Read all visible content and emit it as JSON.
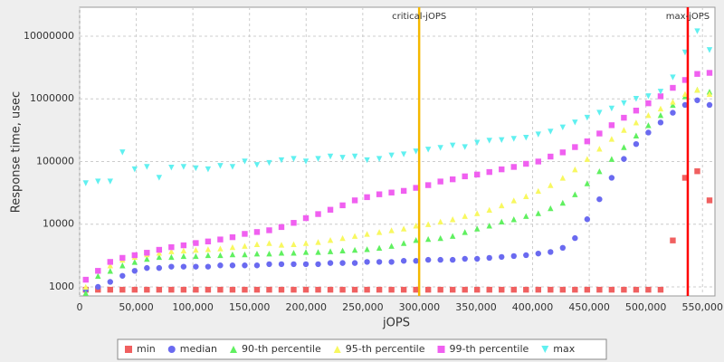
{
  "chart_data": {
    "type": "scatter",
    "x_label": "jOPS",
    "y_label": "Response time, usec",
    "log_y": true,
    "grid": true,
    "xlim": [
      0,
      561000
    ],
    "ylim": [
      716,
      29000000
    ],
    "xticks": [
      0,
      {
        "value": 50000,
        "label": "50,000"
      },
      {
        "value": 100000,
        "label": "100,000"
      },
      {
        "value": 150000,
        "label": "150,000"
      },
      {
        "value": 200000,
        "label": "200,000"
      },
      {
        "value": 250000,
        "label": "250,000"
      },
      {
        "value": 300000,
        "label": "300,000"
      },
      {
        "value": 350000,
        "label": "350,000"
      },
      {
        "value": 400000,
        "label": "400,000"
      },
      {
        "value": 450000,
        "label": "450,000"
      },
      {
        "value": 500000,
        "label": "500,000"
      },
      {
        "value": 550000,
        "label": "550,000"
      }
    ],
    "yticks": [
      1000,
      10000,
      100000,
      1000000,
      10000000
    ],
    "annotations": [
      {
        "text": "critical-jOPS",
        "x": 299800,
        "color": "#f5b800"
      },
      {
        "text": "max-jOPS",
        "x": 537000,
        "color": "#ff0000"
      }
    ],
    "x": [
      5400,
      16200,
      27000,
      37800,
      48600,
      59400,
      70200,
      81000,
      91800,
      102600,
      113400,
      124200,
      135000,
      145800,
      156600,
      167400,
      178200,
      189000,
      199800,
      210600,
      221400,
      232200,
      243000,
      253800,
      264600,
      275400,
      286200,
      297000,
      307800,
      318600,
      329400,
      340200,
      351000,
      361800,
      372600,
      383400,
      394200,
      405000,
      415800,
      426600,
      437400,
      448200,
      459000,
      469800,
      480600,
      491400,
      502200,
      513000,
      523800,
      534600,
      545400,
      556200
    ],
    "series": [
      {
        "name": "min",
        "color": "#f06060",
        "marker": "square",
        "values": [
          900,
          900,
          900,
          900,
          900,
          900,
          900,
          900,
          900,
          900,
          900,
          900,
          900,
          900,
          900,
          900,
          900,
          900,
          900,
          900,
          900,
          900,
          900,
          900,
          900,
          900,
          900,
          900,
          900,
          900,
          900,
          900,
          900,
          900,
          900,
          900,
          900,
          900,
          900,
          900,
          900,
          900,
          900,
          900,
          900,
          900,
          900,
          900,
          5500,
          55000,
          70000,
          24000
        ]
      },
      {
        "name": "median",
        "color": "#6a6af0",
        "marker": "circle",
        "values": [
          900,
          1000,
          1200,
          1500,
          1800,
          2000,
          2000,
          2100,
          2100,
          2100,
          2100,
          2200,
          2200,
          2200,
          2200,
          2300,
          2300,
          2300,
          2300,
          2300,
          2400,
          2400,
          2400,
          2500,
          2500,
          2500,
          2600,
          2600,
          2700,
          2700,
          2700,
          2800,
          2800,
          2900,
          3000,
          3100,
          3200,
          3400,
          3600,
          4200,
          6000,
          12000,
          25000,
          55000,
          110000,
          190000,
          290000,
          420000,
          600000,
          800000,
          950000,
          800000
        ]
      },
      {
        "name": "90-th percentile",
        "color": "#60f060",
        "marker": "triangle-up",
        "values": [
          800,
          1500,
          1800,
          2200,
          2500,
          2800,
          3000,
          3000,
          3100,
          3100,
          3200,
          3200,
          3300,
          3300,
          3400,
          3400,
          3500,
          3500,
          3600,
          3600,
          3700,
          3800,
          3900,
          4000,
          4200,
          4500,
          5000,
          5600,
          5800,
          6000,
          6500,
          7500,
          8500,
          9500,
          11000,
          12000,
          13500,
          15000,
          18000,
          22000,
          30000,
          45000,
          70000,
          110000,
          170000,
          260000,
          380000,
          550000,
          800000,
          1100000,
          1400000,
          1300000
        ]
      },
      {
        "name": "95-th percentile",
        "color": "#f8f860",
        "marker": "triangle-up",
        "values": [
          1000,
          1800,
          2200,
          2700,
          3000,
          3300,
          3500,
          3700,
          3800,
          3900,
          4000,
          4100,
          4300,
          4500,
          4800,
          5000,
          4700,
          4800,
          5000,
          5200,
          5600,
          6000,
          6500,
          7000,
          7500,
          8000,
          8500,
          9500,
          10000,
          11000,
          12000,
          13500,
          15000,
          17000,
          20000,
          24000,
          28000,
          34000,
          42000,
          55000,
          75000,
          110000,
          160000,
          230000,
          320000,
          420000,
          550000,
          700000,
          900000,
          1200000,
          1400000,
          1200000
        ]
      },
      {
        "name": "99-th percentile",
        "color": "#f060f0",
        "marker": "square",
        "values": [
          1300,
          1800,
          2500,
          2900,
          3200,
          3500,
          3900,
          4300,
          4600,
          5000,
          5300,
          5700,
          6200,
          7000,
          7500,
          8000,
          9000,
          10500,
          12500,
          14500,
          17000,
          20000,
          24000,
          27000,
          30000,
          32000,
          34000,
          38000,
          42000,
          48000,
          52000,
          58000,
          62000,
          68000,
          75000,
          82000,
          92000,
          100000,
          120000,
          140000,
          170000,
          210000,
          280000,
          380000,
          500000,
          650000,
          850000,
          1100000,
          1500000,
          2000000,
          2500000,
          2600000
        ]
      },
      {
        "name": "max",
        "color": "#60f0f0",
        "marker": "triangle-down",
        "values": [
          45000,
          48000,
          48000,
          140000,
          75000,
          82000,
          55000,
          80000,
          82000,
          78000,
          75000,
          85000,
          82000,
          100000,
          88000,
          95000,
          105000,
          110000,
          100000,
          110000,
          120000,
          115000,
          120000,
          105000,
          110000,
          125000,
          130000,
          145000,
          155000,
          165000,
          180000,
          170000,
          200000,
          215000,
          220000,
          230000,
          240000,
          270000,
          300000,
          350000,
          420000,
          500000,
          600000,
          700000,
          850000,
          1000000,
          1100000,
          1300000,
          2200000,
          5500000,
          12000000,
          6000000
        ]
      }
    ]
  }
}
